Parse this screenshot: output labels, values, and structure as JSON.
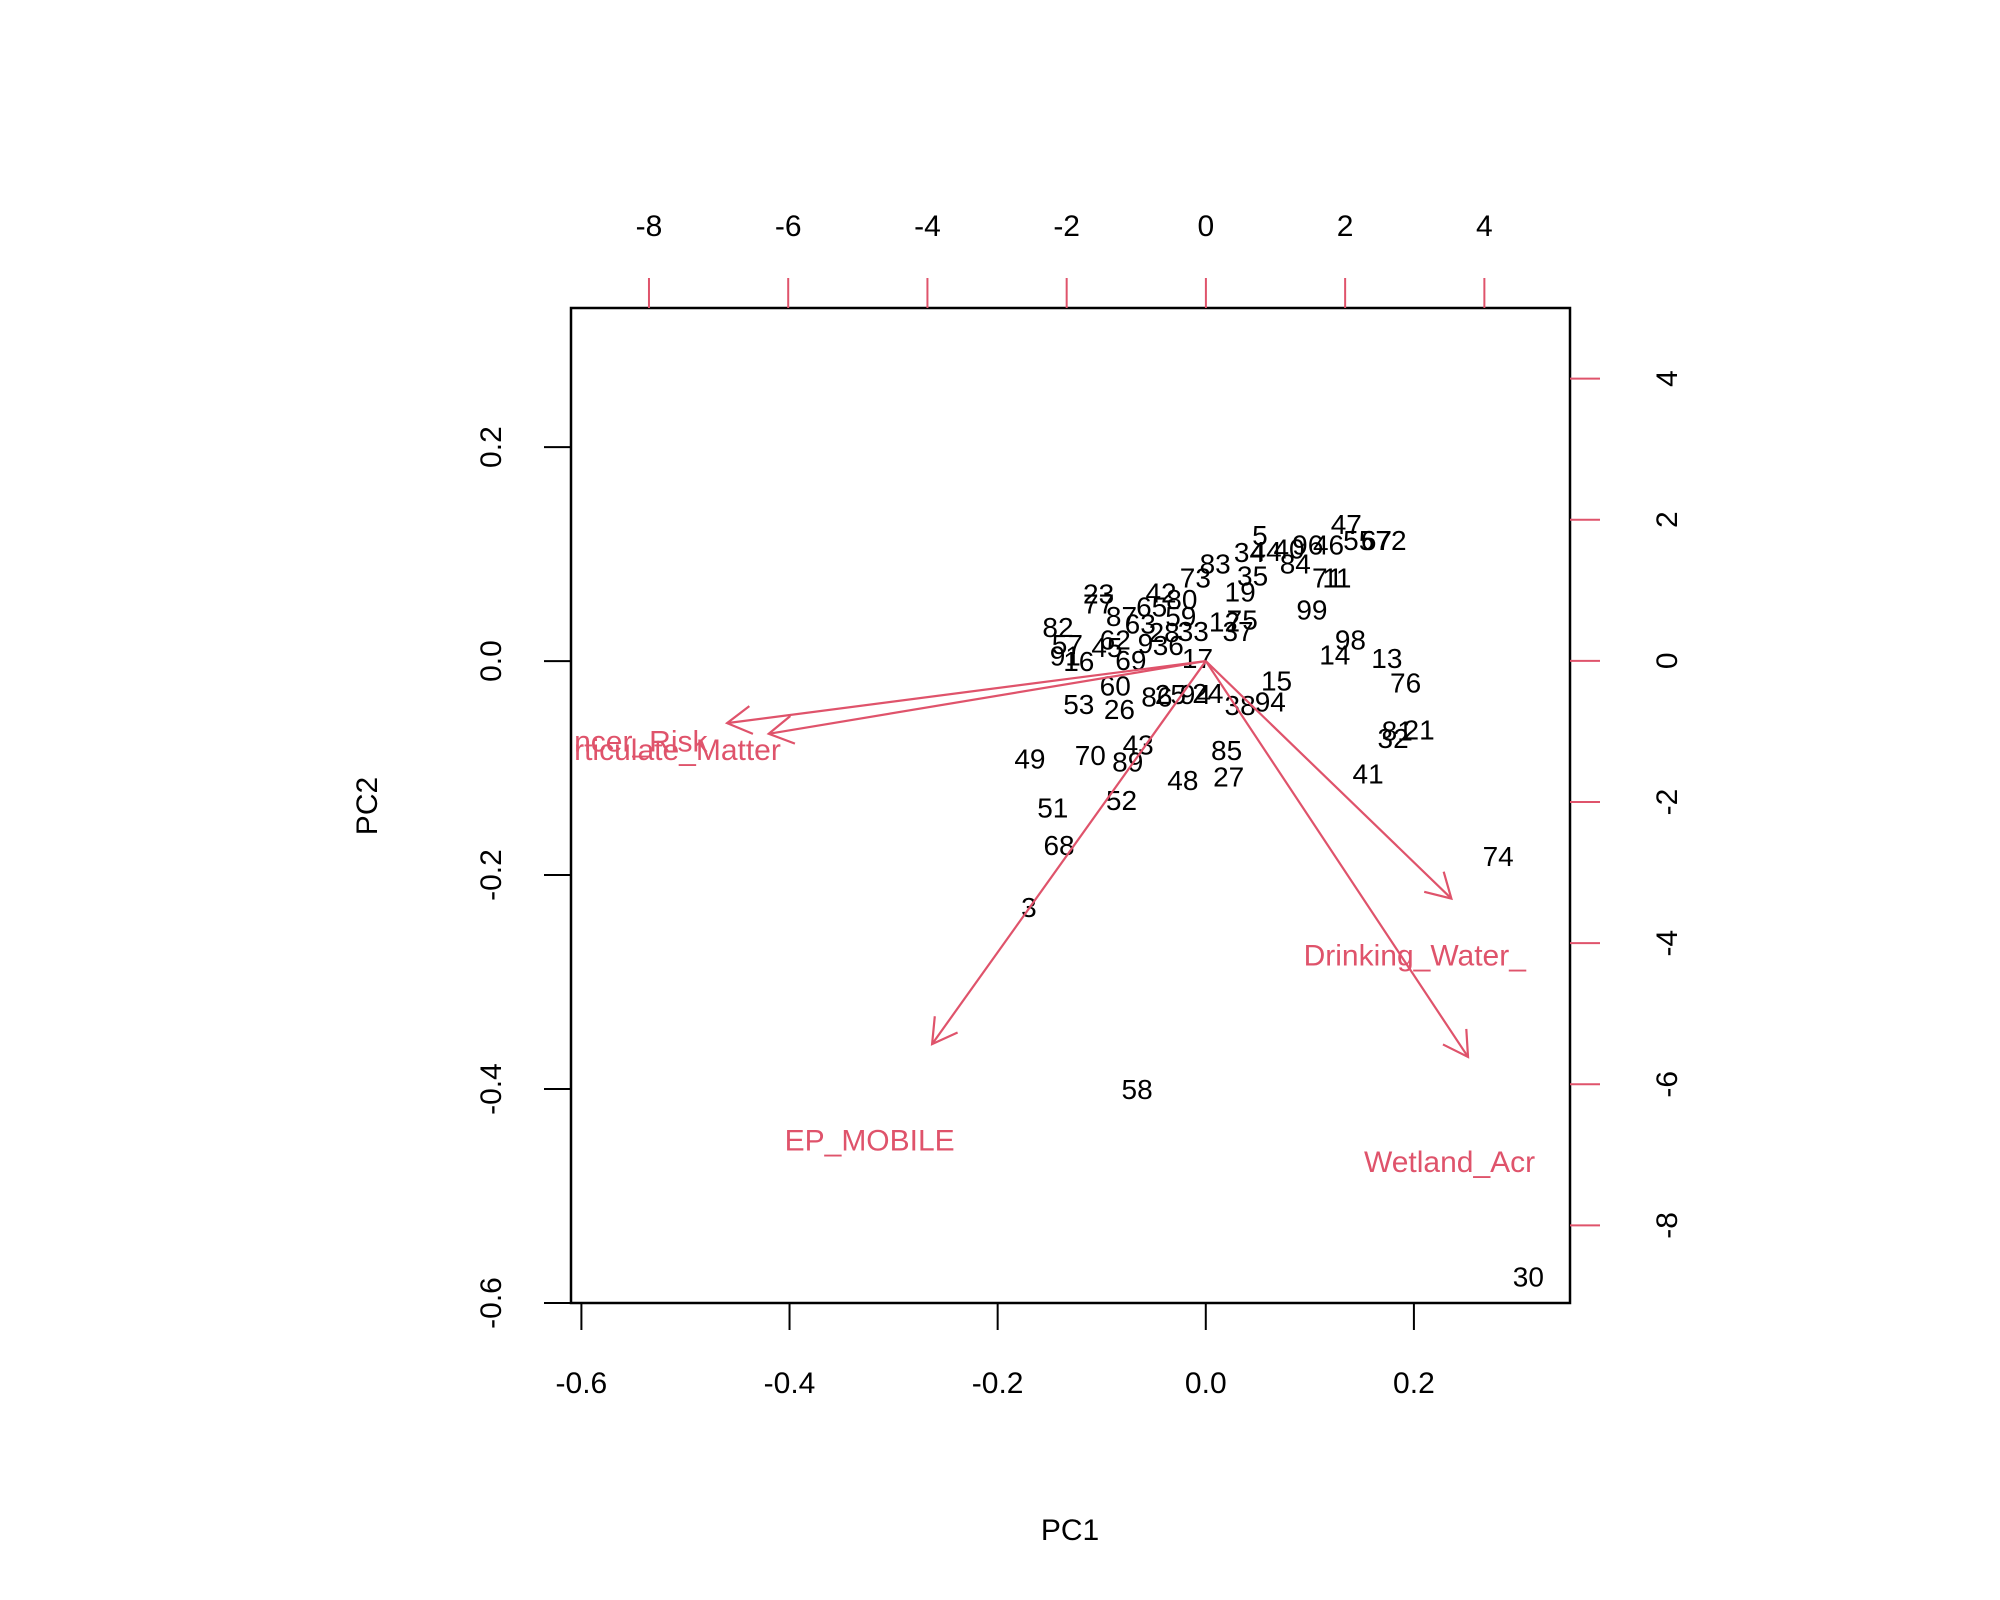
{
  "chart_data": {
    "type": "biplot",
    "xlabel": "PC1",
    "ylabel": "PC2",
    "xlim": [
      -0.61,
      0.35
    ],
    "ylim": [
      -0.6,
      0.33
    ],
    "bottom_ticks": [
      -0.6,
      -0.4,
      -0.2,
      0.0,
      0.2
    ],
    "bottom_tick_labels": [
      "-0.6",
      "-0.4",
      "-0.2",
      "0.0",
      "0.2"
    ],
    "left_ticks": [
      -0.6,
      -0.4,
      -0.2,
      0.0,
      0.2
    ],
    "left_tick_labels": [
      "-0.6",
      "-0.4",
      "-0.2",
      "0.0",
      "0.2"
    ],
    "top_xlim": [
      -9.12,
      5.23
    ],
    "top_ticks": [
      -8,
      -6,
      -4,
      -2,
      0,
      2,
      4
    ],
    "top_tick_labels": [
      "-8",
      "-6",
      "-4",
      "-2",
      "0",
      "2",
      "4"
    ],
    "right_ylim": [
      -9.1,
      5.0
    ],
    "right_ticks": [
      -8,
      -6,
      -4,
      -2,
      0,
      2,
      4
    ],
    "right_tick_labels": [
      "-8",
      "-6",
      "-4",
      "-2",
      "0",
      "2",
      "4"
    ],
    "axis_color": "#000000",
    "loading_color": "#DF536B",
    "grid": false,
    "points": [
      {
        "label": "30",
        "x": 0.31,
        "y": -0.575
      },
      {
        "label": "74",
        "x": 0.281,
        "y": -0.182
      },
      {
        "label": "58",
        "x": -0.066,
        "y": -0.4
      },
      {
        "label": "3",
        "x": -0.17,
        "y": -0.23
      },
      {
        "label": "68",
        "x": -0.141,
        "y": -0.172
      },
      {
        "label": "51",
        "x": -0.147,
        "y": -0.137
      },
      {
        "label": "52",
        "x": -0.081,
        "y": -0.13
      },
      {
        "label": "48",
        "x": -0.022,
        "y": -0.111
      },
      {
        "label": "27",
        "x": 0.022,
        "y": -0.108
      },
      {
        "label": "41",
        "x": 0.156,
        "y": -0.105
      },
      {
        "label": "49",
        "x": -0.169,
        "y": -0.091
      },
      {
        "label": "70",
        "x": -0.111,
        "y": -0.088
      },
      {
        "label": "89",
        "x": -0.075,
        "y": -0.094
      },
      {
        "label": "43",
        "x": -0.065,
        "y": -0.078
      },
      {
        "label": "85",
        "x": 0.02,
        "y": -0.083
      },
      {
        "label": "32",
        "x": 0.18,
        "y": -0.072
      },
      {
        "label": "81",
        "x": 0.184,
        "y": -0.065
      },
      {
        "label": "21",
        "x": 0.205,
        "y": -0.064
      },
      {
        "label": "26",
        "x": -0.083,
        "y": -0.045
      },
      {
        "label": "53",
        "x": -0.122,
        "y": -0.04
      },
      {
        "label": "60",
        "x": -0.087,
        "y": -0.023
      },
      {
        "label": "86",
        "x": -0.047,
        "y": -0.033
      },
      {
        "label": "25",
        "x": -0.034,
        "y": -0.031
      },
      {
        "label": "94",
        "x": -0.01,
        "y": -0.031
      },
      {
        "label": "24",
        "x": 0.002,
        "y": -0.03
      },
      {
        "label": "38",
        "x": 0.033,
        "y": -0.041
      },
      {
        "label": "94",
        "x": 0.062,
        "y": -0.038
      },
      {
        "label": "15",
        "x": 0.068,
        "y": -0.018
      },
      {
        "label": "76",
        "x": 0.192,
        "y": -0.02
      },
      {
        "label": "13",
        "x": 0.174,
        "y": 0.003
      },
      {
        "label": "14",
        "x": 0.124,
        "y": 0.006
      },
      {
        "label": "98",
        "x": 0.139,
        "y": 0.02
      },
      {
        "label": "99",
        "x": 0.102,
        "y": 0.048
      },
      {
        "label": "16",
        "x": -0.122,
        "y": 0.0
      },
      {
        "label": "91",
        "x": -0.135,
        "y": 0.005
      },
      {
        "label": "57",
        "x": -0.133,
        "y": 0.016
      },
      {
        "label": "82",
        "x": -0.142,
        "y": 0.032
      },
      {
        "label": "23",
        "x": -0.103,
        "y": 0.063
      },
      {
        "label": "77",
        "x": -0.103,
        "y": 0.054
      },
      {
        "label": "87",
        "x": -0.081,
        "y": 0.042
      },
      {
        "label": "69",
        "x": -0.072,
        "y": 0.001
      },
      {
        "label": "63",
        "x": -0.063,
        "y": 0.035
      },
      {
        "label": "65",
        "x": -0.052,
        "y": 0.051
      },
      {
        "label": "42",
        "x": -0.043,
        "y": 0.064
      },
      {
        "label": "80",
        "x": -0.023,
        "y": 0.058
      },
      {
        "label": "33",
        "x": -0.012,
        "y": 0.028
      },
      {
        "label": "17",
        "x": -0.008,
        "y": 0.003
      },
      {
        "label": "37",
        "x": 0.031,
        "y": 0.028
      },
      {
        "label": "75",
        "x": 0.035,
        "y": 0.039
      },
      {
        "label": "12",
        "x": 0.018,
        "y": 0.037
      },
      {
        "label": "19",
        "x": 0.033,
        "y": 0.065
      },
      {
        "label": "73",
        "x": -0.01,
        "y": 0.078
      },
      {
        "label": "83",
        "x": 0.009,
        "y": 0.091
      },
      {
        "label": "35",
        "x": 0.045,
        "y": 0.08
      },
      {
        "label": "34",
        "x": 0.042,
        "y": 0.102
      },
      {
        "label": "44",
        "x": 0.058,
        "y": 0.103
      },
      {
        "label": "5",
        "x": 0.052,
        "y": 0.118
      },
      {
        "label": "40",
        "x": 0.08,
        "y": 0.105
      },
      {
        "label": "96",
        "x": 0.098,
        "y": 0.109
      },
      {
        "label": "84",
        "x": 0.086,
        "y": 0.091
      },
      {
        "label": "46",
        "x": 0.118,
        "y": 0.109
      },
      {
        "label": "11",
        "x": 0.126,
        "y": 0.078
      },
      {
        "label": "71",
        "x": 0.117,
        "y": 0.078
      },
      {
        "label": "47",
        "x": 0.135,
        "y": 0.128
      },
      {
        "label": "55",
        "x": 0.147,
        "y": 0.113
      },
      {
        "label": "67",
        "x": 0.164,
        "y": 0.113
      },
      {
        "label": "72",
        "x": 0.178,
        "y": 0.113
      },
      {
        "label": "62",
        "x": -0.087,
        "y": 0.02
      },
      {
        "label": "45",
        "x": -0.095,
        "y": 0.013
      },
      {
        "label": "9",
        "x": -0.058,
        "y": 0.017
      },
      {
        "label": "28",
        "x": -0.04,
        "y": 0.027
      },
      {
        "label": "36",
        "x": -0.036,
        "y": 0.015
      },
      {
        "label": "59",
        "x": -0.024,
        "y": 0.042
      }
    ],
    "loadings": [
      {
        "name": "Cancer_Risk",
        "label": "ncer_Risk",
        "tip_x": -0.46,
        "tip_y": -0.058,
        "label_x": -0.607,
        "label_y": -0.075,
        "anchor": "start"
      },
      {
        "name": "Particulate_Matter",
        "label": "rticulate_Matter",
        "tip_x": -0.42,
        "tip_y": -0.068,
        "label_x": -0.607,
        "label_y": -0.083,
        "anchor": "start"
      },
      {
        "name": "EP_MOBILE",
        "label": "EP_MOBILE",
        "tip_x": -0.263,
        "tip_y": -0.358,
        "label_x": -0.323,
        "label_y": -0.448,
        "anchor": "middle"
      },
      {
        "name": "Drinking_Water_",
        "label": "Drinking_Water_",
        "tip_x": 0.236,
        "tip_y": -0.222,
        "label_x": 0.094,
        "label_y": -0.275,
        "anchor": "start"
      },
      {
        "name": "Wetland_Acr",
        "label": "Wetland_Acr",
        "tip_x": 0.252,
        "tip_y": -0.37,
        "label_x": 0.152,
        "label_y": -0.468,
        "anchor": "start"
      }
    ]
  }
}
